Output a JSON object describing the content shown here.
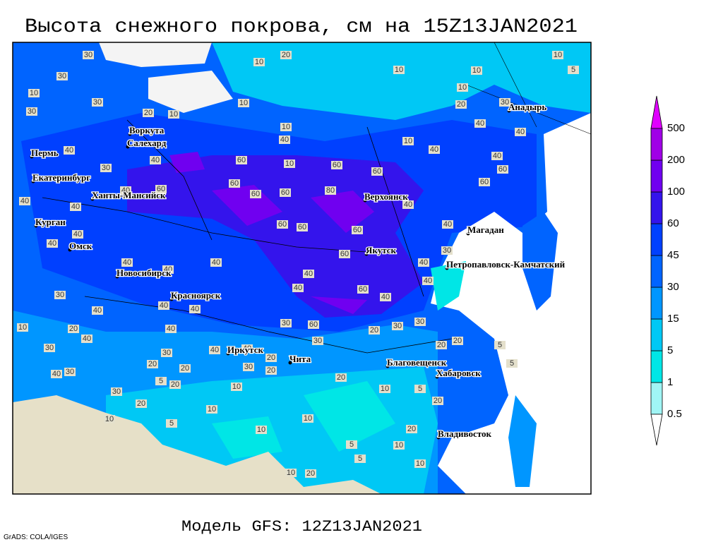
{
  "header": {
    "title": "Высота снежного покрова, см на 15Z13JAN2021",
    "subtitle": "Модель GFS: 12Z13JAN2021",
    "credit": "GrADS: COLA/IGES"
  },
  "colorbar": {
    "levels": [
      0.5,
      1,
      5,
      15,
      30,
      45,
      60,
      100,
      200,
      500
    ],
    "colors": [
      "#ffffff",
      "#a0f5f5",
      "#00e6e6",
      "#00c8f5",
      "#0096ff",
      "#0064ff",
      "#0040ff",
      "#3414ec",
      "#7000f0",
      "#a000e6",
      "#e000ff"
    ]
  },
  "cities": [
    "Пермь",
    "Екатеринбург",
    "Ханты-Мансийск",
    "Курган",
    "Омск",
    "Новосибирск",
    "Красноярск",
    "Иркутск",
    "Чита",
    "Благовещенск",
    "Хабаровск",
    "Владивосток",
    "Якутск",
    "Верхоянск",
    "Магадан",
    "Петропавловск-Камчатский",
    "Анадырь",
    "Воркута",
    "Салехард"
  ],
  "contour_labels": [
    30,
    20,
    10,
    10,
    5,
    10,
    10,
    10,
    30,
    10,
    30,
    10,
    20,
    30,
    30,
    20,
    10,
    10,
    40,
    40,
    10,
    40,
    40,
    40,
    30,
    40,
    60,
    10,
    60,
    60,
    40,
    60,
    60,
    60,
    60,
    60,
    80,
    60,
    40,
    40,
    40,
    40,
    60,
    60,
    60,
    40,
    40,
    40,
    60,
    30,
    40,
    40,
    40,
    40,
    40,
    40,
    40,
    60,
    40,
    30,
    40,
    40,
    40,
    10,
    20,
    40,
    60,
    30,
    30,
    30,
    20,
    40,
    30,
    40,
    40,
    30,
    30,
    20,
    20,
    5,
    20,
    30,
    40,
    30,
    20,
    20,
    20,
    5,
    5,
    20,
    10,
    20,
    10,
    5,
    30,
    10,
    20,
    10,
    20,
    5,
    10,
    10,
    20,
    5,
    10,
    10,
    20,
    5,
    10
  ]
}
